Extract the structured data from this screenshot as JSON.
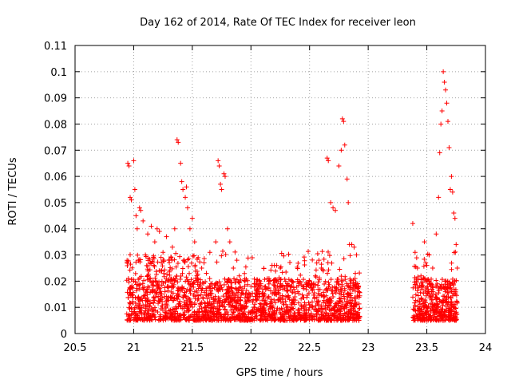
{
  "chart_data": {
    "type": "scatter",
    "title": "Day 162 of 2014, Rate Of TEC Index for receiver leon",
    "xlabel": "GPS time / hours",
    "ylabel": "ROTI / TECUs",
    "xlim": [
      20.5,
      24
    ],
    "ylim": [
      0,
      0.11
    ],
    "xticks": [
      "20.5",
      "21",
      "21.5",
      "22",
      "22.5",
      "23",
      "23.5",
      "24"
    ],
    "xtick_values": [
      20.5,
      21,
      21.5,
      22,
      22.5,
      23,
      23.5,
      24
    ],
    "yticks": [
      "0",
      "0.01",
      "0.02",
      "0.03",
      "0.04",
      "0.05",
      "0.06",
      "0.07",
      "0.08",
      "0.09",
      "0.1",
      "0.11"
    ],
    "ytick_values": [
      0,
      0.01,
      0.02,
      0.03,
      0.04,
      0.05,
      0.06,
      0.07,
      0.08,
      0.09,
      0.1,
      0.11
    ],
    "grid": true,
    "marker": "+",
    "color": "#ff0000",
    "series": [
      {
        "name": "ROTI",
        "points": [
          [
            20.95,
            0.065
          ],
          [
            20.96,
            0.064
          ],
          [
            20.97,
            0.052
          ],
          [
            20.98,
            0.051
          ],
          [
            21.0,
            0.066
          ],
          [
            21.01,
            0.055
          ],
          [
            21.02,
            0.045
          ],
          [
            21.03,
            0.04
          ],
          [
            21.05,
            0.048
          ],
          [
            21.06,
            0.047
          ],
          [
            21.08,
            0.043
          ],
          [
            21.1,
            0.03
          ],
          [
            21.12,
            0.038
          ],
          [
            21.15,
            0.041
          ],
          [
            21.18,
            0.035
          ],
          [
            21.2,
            0.04
          ],
          [
            21.22,
            0.039
          ],
          [
            21.25,
            0.031
          ],
          [
            21.28,
            0.037
          ],
          [
            21.3,
            0.028
          ],
          [
            21.33,
            0.033
          ],
          [
            21.35,
            0.04
          ],
          [
            21.37,
            0.074
          ],
          [
            21.38,
            0.073
          ],
          [
            21.4,
            0.065
          ],
          [
            21.41,
            0.058
          ],
          [
            21.42,
            0.055
          ],
          [
            21.44,
            0.052
          ],
          [
            21.45,
            0.056
          ],
          [
            21.46,
            0.048
          ],
          [
            21.48,
            0.04
          ],
          [
            21.5,
            0.044
          ],
          [
            21.52,
            0.035
          ],
          [
            21.55,
            0.029
          ],
          [
            21.58,
            0.025
          ],
          [
            21.6,
            0.027
          ],
          [
            21.62,
            0.023
          ],
          [
            21.65,
            0.031
          ],
          [
            21.7,
            0.035
          ],
          [
            21.72,
            0.066
          ],
          [
            21.73,
            0.064
          ],
          [
            21.74,
            0.057
          ],
          [
            21.75,
            0.055
          ],
          [
            21.77,
            0.061
          ],
          [
            21.78,
            0.06
          ],
          [
            21.8,
            0.04
          ],
          [
            21.82,
            0.035
          ],
          [
            21.85,
            0.025
          ],
          [
            21.88,
            0.028
          ],
          [
            21.9,
            0.022
          ],
          [
            21.95,
            0.02
          ],
          [
            22.0,
            0.018
          ],
          [
            22.05,
            0.019
          ],
          [
            22.1,
            0.017
          ],
          [
            22.15,
            0.02
          ],
          [
            22.18,
            0.026
          ],
          [
            22.2,
            0.026
          ],
          [
            22.22,
            0.026
          ],
          [
            22.25,
            0.025
          ],
          [
            22.3,
            0.018
          ],
          [
            22.35,
            0.02
          ],
          [
            22.4,
            0.016
          ],
          [
            22.45,
            0.018
          ],
          [
            22.5,
            0.02
          ],
          [
            22.55,
            0.022
          ],
          [
            22.58,
            0.028
          ],
          [
            22.6,
            0.025
          ],
          [
            22.65,
            0.067
          ],
          [
            22.66,
            0.066
          ],
          [
            22.68,
            0.05
          ],
          [
            22.7,
            0.048
          ],
          [
            22.72,
            0.047
          ],
          [
            22.75,
            0.064
          ],
          [
            22.77,
            0.07
          ],
          [
            22.78,
            0.082
          ],
          [
            22.79,
            0.081
          ],
          [
            22.8,
            0.072
          ],
          [
            22.82,
            0.059
          ],
          [
            22.83,
            0.05
          ],
          [
            22.84,
            0.034
          ],
          [
            22.86,
            0.034
          ],
          [
            22.88,
            0.033
          ],
          [
            22.9,
            0.03
          ],
          [
            22.92,
            0.016
          ],
          [
            23.38,
            0.042
          ],
          [
            23.4,
            0.031
          ],
          [
            23.42,
            0.025
          ],
          [
            23.45,
            0.022
          ],
          [
            23.48,
            0.035
          ],
          [
            23.5,
            0.026
          ],
          [
            23.52,
            0.03
          ],
          [
            23.55,
            0.025
          ],
          [
            23.58,
            0.038
          ],
          [
            23.6,
            0.052
          ],
          [
            23.61,
            0.069
          ],
          [
            23.62,
            0.08
          ],
          [
            23.63,
            0.085
          ],
          [
            23.64,
            0.1
          ],
          [
            23.65,
            0.096
          ],
          [
            23.66,
            0.093
          ],
          [
            23.67,
            0.088
          ],
          [
            23.68,
            0.081
          ],
          [
            23.69,
            0.071
          ],
          [
            23.7,
            0.055
          ],
          [
            23.71,
            0.06
          ],
          [
            23.72,
            0.054
          ],
          [
            23.73,
            0.046
          ],
          [
            23.74,
            0.044
          ],
          [
            23.75,
            0.034
          ],
          [
            23.76,
            0.025
          ]
        ]
      }
    ]
  }
}
